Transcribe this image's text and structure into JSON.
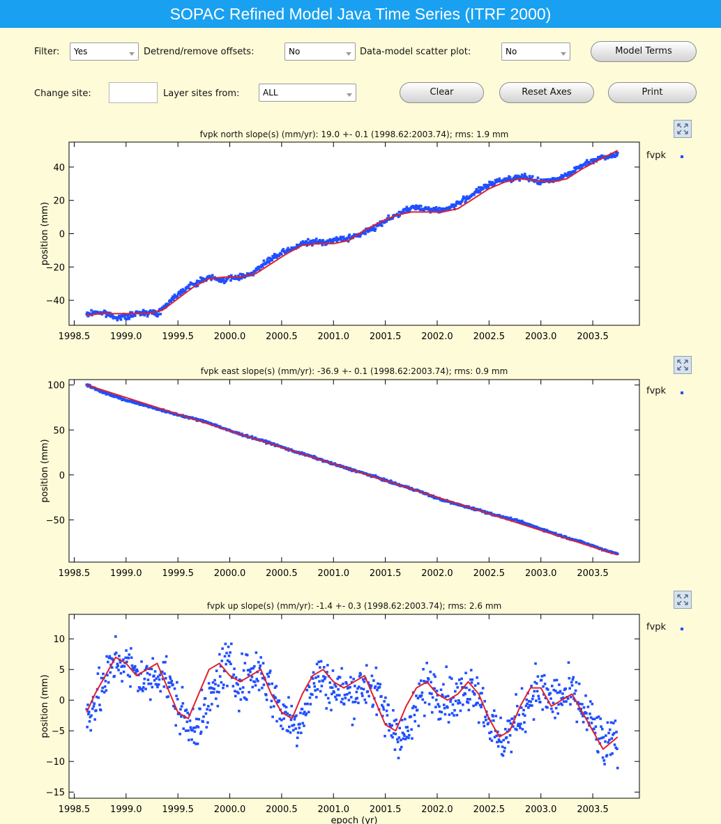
{
  "window": {
    "title": "SOPAC Refined Model Java Time Series (ITRF 2000)"
  },
  "controls": {
    "filter_label": "Filter:",
    "filter_value": "Yes",
    "detrend_label": "Detrend/remove offsets:",
    "detrend_value": "No",
    "scatter_label": "Data-model scatter plot:",
    "scatter_value": "No",
    "model_terms_button": "Model Terms",
    "change_site_label": "Change site:",
    "change_site_value": "",
    "layer_label": "Layer sites from:",
    "layer_value": "ALL",
    "clear_button": "Clear",
    "reset_axes_button": "Reset Axes",
    "print_button": "Print"
  },
  "colors": {
    "data": "#1f4fff",
    "model": "#e0202a",
    "title_bar": "#1aa0f0",
    "background": "#fefbd8"
  },
  "icons": {
    "expand": "expand-icon"
  },
  "chart_data": [
    {
      "type": "scatter",
      "title": "fvpk north slope(s) (mm/yr): 19.0 +- 0.1 (1998.62:2003.74); rms: 1.9 mm",
      "xlabel": "",
      "ylabel": "position (mm)",
      "xlim": [
        1998.45,
        2003.95
      ],
      "ylim": [
        -55,
        55
      ],
      "xticks": [
        "1998.5",
        "1999.0",
        "1999.5",
        "2000.0",
        "2000.5",
        "2001.0",
        "2001.5",
        "2002.0",
        "2002.5",
        "2003.0",
        "2003.5"
      ],
      "yticks": [
        "40",
        "20",
        "0",
        "−20",
        "−40"
      ],
      "legend": "fvpk",
      "legend_position": "right",
      "series": [
        {
          "name": "fvpk",
          "x": [
            1998.62,
            1998.7,
            1998.8,
            1998.9,
            1999.0,
            1999.1,
            1999.2,
            1999.3,
            1999.4,
            1999.5,
            1999.6,
            1999.7,
            1999.8,
            1999.9,
            2000.0,
            2000.1,
            2000.2,
            2000.3,
            2000.4,
            2000.5,
            2000.6,
            2000.7,
            2000.8,
            2000.9,
            2001.0,
            2001.1,
            2001.2,
            2001.3,
            2001.4,
            2001.5,
            2001.6,
            2001.7,
            2001.8,
            2001.9,
            2002.0,
            2002.1,
            2002.2,
            2002.3,
            2002.4,
            2002.5,
            2002.6,
            2002.7,
            2002.8,
            2002.9,
            2003.0,
            2003.1,
            2003.2,
            2003.3,
            2003.4,
            2003.5,
            2003.6,
            2003.74
          ],
          "y": [
            -49,
            -47,
            -48,
            -50,
            -50,
            -48,
            -47,
            -48,
            -42,
            -36,
            -32,
            -29,
            -26,
            -28,
            -27,
            -26,
            -24,
            -20,
            -15,
            -12,
            -9,
            -6,
            -5,
            -5,
            -4,
            -3,
            -2,
            1,
            4,
            8,
            11,
            14,
            16,
            15,
            14,
            15,
            18,
            22,
            26,
            29,
            32,
            33,
            34,
            33,
            31,
            32,
            34,
            37,
            41,
            44,
            46,
            48
          ]
        },
        {
          "name": "model",
          "x": [
            1998.62,
            1998.75,
            1998.9,
            1999.05,
            1999.2,
            1999.35,
            1999.5,
            1999.65,
            1999.8,
            1999.95,
            2000.1,
            2000.25,
            2000.4,
            2000.55,
            2000.7,
            2000.85,
            2001.0,
            2001.15,
            2001.3,
            2001.45,
            2001.6,
            2001.75,
            2001.9,
            2002.05,
            2002.2,
            2002.35,
            2002.5,
            2002.65,
            2002.8,
            2002.95,
            2003.1,
            2003.25,
            2003.4,
            2003.55,
            2003.74
          ],
          "y": [
            -49,
            -48,
            -48,
            -48,
            -48,
            -46,
            -39,
            -32,
            -27,
            -26,
            -26,
            -24,
            -18,
            -12,
            -7,
            -6,
            -6,
            -4,
            2,
            7,
            11,
            13,
            13,
            13,
            15,
            21,
            27,
            31,
            33,
            32,
            31,
            33,
            39,
            44,
            50
          ]
        }
      ]
    },
    {
      "type": "scatter",
      "title": "fvpk east slope(s) (mm/yr): -36.9 +- 0.1 (1998.62:2003.74); rms: 0.9 mm",
      "xlabel": "",
      "ylabel": "position (mm)",
      "xlim": [
        1998.45,
        2003.95
      ],
      "ylim": [
        -97,
        106
      ],
      "xticks": [
        "1998.5",
        "1999.0",
        "1999.5",
        "2000.0",
        "2000.5",
        "2001.0",
        "2001.5",
        "2002.0",
        "2002.5",
        "2003.0",
        "2003.5"
      ],
      "yticks": [
        "100",
        "50",
        "0",
        "−50"
      ],
      "legend": "fvpk",
      "legend_position": "right",
      "series": [
        {
          "name": "fvpk",
          "x": [
            1998.62,
            1998.8,
            1999.0,
            1999.2,
            1999.4,
            1999.6,
            1999.8,
            2000.0,
            2000.2,
            2000.4,
            2000.6,
            2000.8,
            2001.0,
            2001.2,
            2001.4,
            2001.6,
            2001.8,
            2002.0,
            2002.2,
            2002.4,
            2002.6,
            2002.8,
            2003.0,
            2003.2,
            2003.4,
            2003.6,
            2003.74
          ],
          "y": [
            100,
            91,
            83,
            77,
            70,
            64,
            58,
            49,
            42,
            35,
            27,
            20,
            12,
            5,
            -2,
            -10,
            -17,
            -26,
            -33,
            -39,
            -46,
            -52,
            -60,
            -68,
            -75,
            -83,
            -88
          ]
        },
        {
          "name": "model",
          "x": [
            1998.62,
            2003.74
          ],
          "y": [
            100,
            -89
          ]
        }
      ]
    },
    {
      "type": "scatter",
      "title": "fvpk up slope(s) (mm/yr): -1.4 +- 0.3 (1998.62:2003.74); rms: 2.6 mm",
      "xlabel": "epoch (yr)",
      "ylabel": "position (mm)",
      "xlim": [
        1998.45,
        2003.95
      ],
      "ylim": [
        -16,
        14
      ],
      "xticks": [
        "1998.5",
        "1999.0",
        "1999.5",
        "2000.0",
        "2000.5",
        "2001.0",
        "2001.5",
        "2002.0",
        "2002.5",
        "2003.0",
        "2003.5"
      ],
      "yticks": [
        "10",
        "5",
        "0",
        "−5",
        "−10",
        "−15"
      ],
      "legend": "fvpk",
      "legend_position": "right",
      "series": [
        {
          "name": "fvpk",
          "x": [
            1998.62,
            1998.75,
            1998.9,
            1999.05,
            1999.2,
            1999.35,
            1999.5,
            1999.6,
            1999.75,
            1999.95,
            2000.1,
            2000.3,
            2000.5,
            2000.65,
            2000.85,
            2001.0,
            2001.15,
            2001.35,
            2001.55,
            2001.7,
            2001.9,
            2002.05,
            2002.2,
            2002.35,
            2002.5,
            2002.6,
            2002.75,
            2002.95,
            2003.1,
            2003.3,
            2003.5,
            2003.62,
            2003.74
          ],
          "y": [
            -2,
            1,
            7,
            5,
            3,
            5,
            -1,
            -4,
            -3,
            6,
            3,
            5,
            -2,
            -4,
            4,
            2,
            1,
            3,
            -4,
            -6,
            3,
            1,
            0,
            3,
            -3,
            -7,
            -4,
            2,
            0,
            1,
            -4,
            -8,
            -6
          ]
        },
        {
          "name": "model",
          "x": [
            1998.62,
            1998.7,
            1998.8,
            1998.9,
            1999.0,
            1999.1,
            1999.2,
            1999.3,
            1999.4,
            1999.5,
            1999.6,
            1999.7,
            1999.8,
            1999.9,
            2000.0,
            2000.1,
            2000.2,
            2000.3,
            2000.4,
            2000.5,
            2000.6,
            2000.7,
            2000.8,
            2000.9,
            2001.0,
            2001.1,
            2001.2,
            2001.3,
            2001.4,
            2001.5,
            2001.6,
            2001.7,
            2001.8,
            2001.9,
            2002.0,
            2002.1,
            2002.2,
            2002.3,
            2002.4,
            2002.5,
            2002.6,
            2002.7,
            2002.8,
            2002.9,
            2003.0,
            2003.1,
            2003.2,
            2003.3,
            2003.4,
            2003.5,
            2003.6,
            2003.74
          ],
          "y": [
            -2,
            1,
            4,
            7,
            6,
            4,
            5,
            6,
            2,
            -2,
            -3,
            1,
            5,
            6,
            4,
            3,
            4,
            5,
            1,
            -2,
            -3,
            1,
            4,
            5,
            3,
            2,
            3,
            4,
            0,
            -4,
            -5,
            -1,
            2,
            3,
            1,
            0,
            1,
            3,
            1,
            -3,
            -6,
            -5,
            -1,
            2,
            2,
            -1,
            0,
            1,
            -2,
            -5,
            -8,
            -6
          ]
        }
      ]
    }
  ]
}
